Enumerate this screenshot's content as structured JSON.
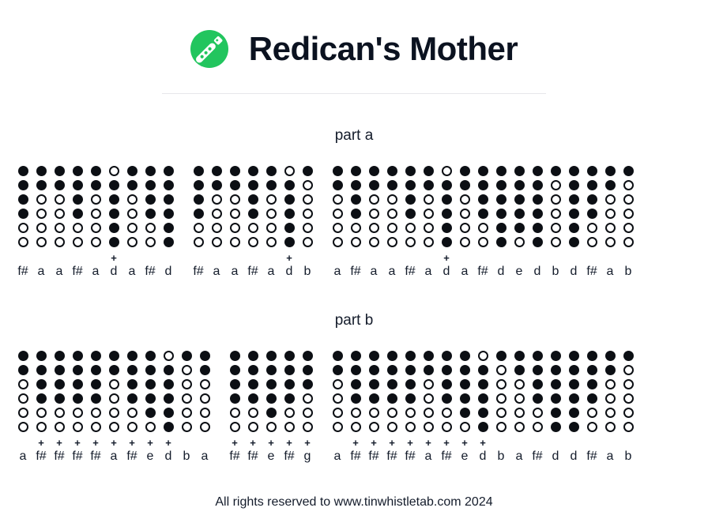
{
  "header": {
    "title": "Redican's Mother"
  },
  "logo": {
    "icon": "tin-whistle-icon",
    "color": "#22c55e"
  },
  "sections": [
    {
      "label": "part a",
      "groups": [
        {
          "notes": [
            "f#",
            "a",
            "a",
            "f#",
            "a",
            "d+",
            "a",
            "f#",
            "d"
          ]
        },
        {
          "notes": [
            "f#",
            "a",
            "a",
            "f#",
            "a",
            "d+",
            "b"
          ]
        },
        {
          "notes": [
            "a",
            "f#",
            "a",
            "a",
            "f#",
            "a",
            "d+",
            "a",
            "f#",
            "d",
            "e",
            "d",
            "b",
            "d",
            "f#",
            "a",
            "b"
          ]
        }
      ]
    },
    {
      "label": "part b",
      "groups": [
        {
          "notes": [
            "a",
            "f#+",
            "f#+",
            "f#+",
            "f#+",
            "a+",
            "f#+",
            "e+",
            "d+",
            "b",
            "a"
          ]
        },
        {
          "notes": [
            "f#+",
            "f#+",
            "e+",
            "f#+",
            "g+"
          ]
        },
        {
          "notes": [
            "a",
            "f#+",
            "f#+",
            "f#+",
            "f#+",
            "a+",
            "f#+",
            "e+",
            "d+",
            "b",
            "a",
            "f#",
            "d",
            "d",
            "f#",
            "a",
            "b"
          ]
        }
      ]
    }
  ],
  "fingerings": {
    "d": "111111",
    "e": "111110",
    "f#": "111100",
    "g": "111000",
    "a": "110000",
    "b": "100000",
    "d+": "011111",
    "e+": "111110",
    "f#+": "111100",
    "g+": "111000",
    "a+": "110000"
  },
  "legend": {
    "holes_order": "top-to-bottom",
    "filled_means": "hole covered",
    "open_means": "hole open",
    "octave_marker": "+"
  },
  "footer": {
    "text": "All rights reserved to www.tinwhistletab.com 2024"
  },
  "colors": {
    "accent_green": "#22c55e",
    "title_text": "#0b1220",
    "body_text": "#141c2b",
    "hole": "#0c0f14",
    "divider": "#e7e7ea",
    "background": "#ffffff"
  }
}
